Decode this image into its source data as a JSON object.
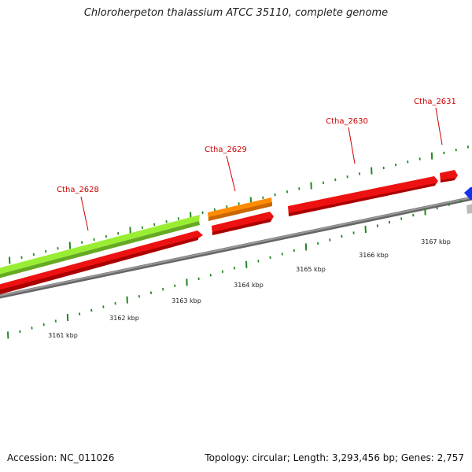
{
  "title": "Chloroherpeton thalassium ATCC 35110, complete genome",
  "accession": "Accession: NC_011026",
  "summary": "Topology: circular; Length: 3,293,456 bp; Genes: 2,757",
  "colors": {
    "green_gene": "#99ee33",
    "orange_gene": "#ff8c00",
    "red_gene": "#ee1111",
    "blue_gene": "#1133ee",
    "gray_gene": "#bbbbbb",
    "backbone": "#888888",
    "ticks": "#228822",
    "gene_label": "#cc0000"
  },
  "gene_labels": [
    {
      "name": "Ctha_2628"
    },
    {
      "name": "Ctha_2629"
    },
    {
      "name": "Ctha_2630"
    },
    {
      "name": "Ctha_2631"
    }
  ],
  "scale_labels": [
    "3161 kbp",
    "3162 kbp",
    "3163 kbp",
    "3164 kbp",
    "3165 kbp",
    "3166 kbp",
    "3167 kbp"
  ]
}
